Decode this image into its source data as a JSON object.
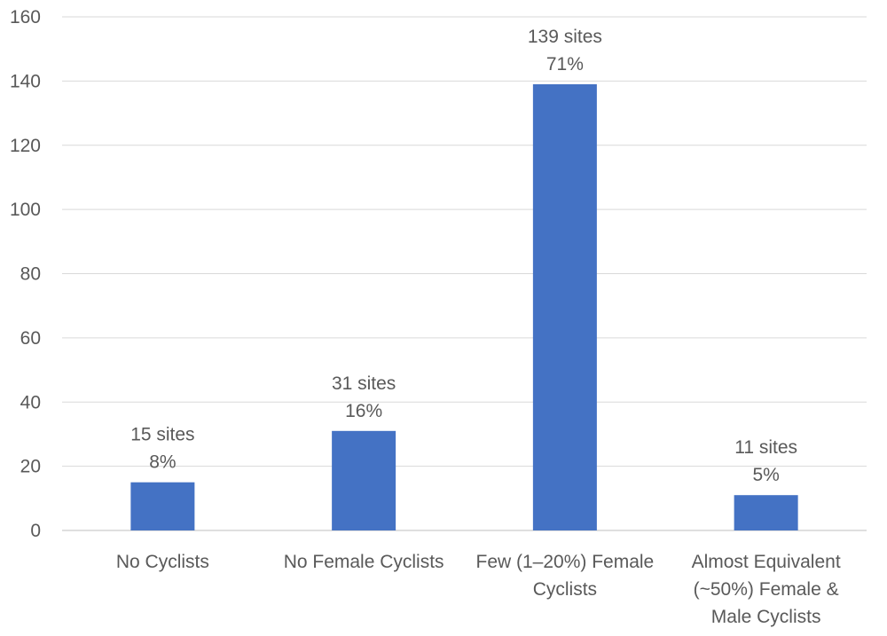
{
  "chart_data": {
    "type": "bar",
    "categories": [
      [
        "No Cyclists"
      ],
      [
        "No Female Cyclists"
      ],
      [
        "Few (1–20%) Female",
        "Cyclists"
      ],
      [
        "Almost Equivalent",
        "(~50%) Female &",
        "Male Cyclists"
      ]
    ],
    "values": [
      15,
      31,
      139,
      11
    ],
    "data_labels": [
      [
        "15 sites",
        "8%"
      ],
      [
        "31 sites",
        "16%"
      ],
      [
        "139 sites",
        "71%"
      ],
      [
        "11 sites",
        "5%"
      ]
    ],
    "ylim": [
      0,
      160
    ],
    "yticks": [
      "0",
      "20",
      "40",
      "60",
      "80",
      "100",
      "120",
      "140",
      "160"
    ],
    "grid": true,
    "legend": "none",
    "title": "",
    "xlabel": "",
    "ylabel": "",
    "colors": {
      "bar": "#4472c4",
      "grid": "#d9d9d9",
      "text": "#595959"
    }
  }
}
